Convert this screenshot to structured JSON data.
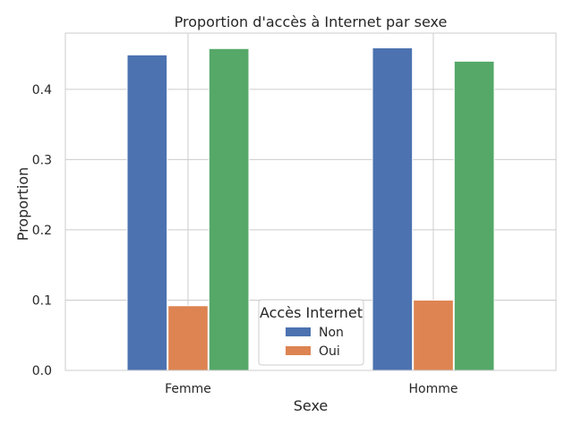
{
  "chart_data": {
    "type": "bar",
    "title": "Proportion d'accès à Internet par sexe",
    "xlabel": "Sexe",
    "ylabel": "Proportion",
    "categories": [
      "Femme",
      "Homme"
    ],
    "ylim": [
      0,
      0.48
    ],
    "yticks": [
      0.0,
      0.1,
      0.2,
      0.3,
      0.4
    ],
    "ytick_labels": [
      "0.0",
      "0.1",
      "0.2",
      "0.3",
      "0.4"
    ],
    "grid": true,
    "series": [
      {
        "name": "Non",
        "values": [
          0.449,
          0.459
        ],
        "color": "#4c72b0"
      },
      {
        "name": "Oui",
        "values": [
          0.092,
          0.1
        ],
        "color": "#dd8452"
      },
      {
        "name": "",
        "values": [
          0.458,
          0.44
        ],
        "color": "#55a868"
      }
    ],
    "legend": {
      "title": "Accès Internet",
      "placement": "lower-center",
      "entries": [
        {
          "label": "Non",
          "color": "#4c72b0"
        },
        {
          "label": "Oui",
          "color": "#dd8452"
        }
      ]
    }
  }
}
